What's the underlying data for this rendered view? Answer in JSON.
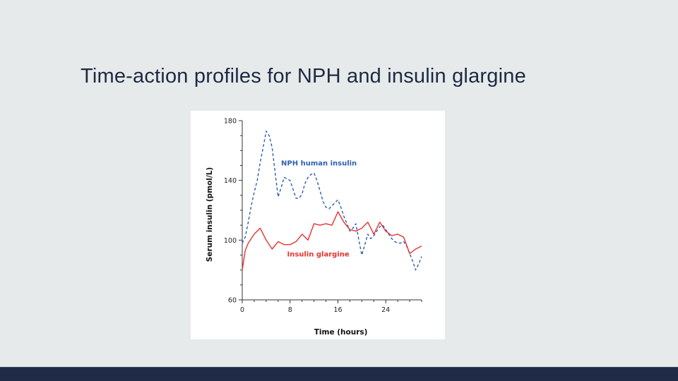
{
  "slide": {
    "title": "Time-action profiles for NPH and insulin glargine"
  },
  "colors": {
    "background": "#e6eaea",
    "title": "#1e2a44",
    "bottom_bar": "#1f2b47",
    "nph_series": "#2f5fb3",
    "glargine_series": "#e8322e"
  },
  "chart_data": {
    "type": "line",
    "title": "",
    "xlabel": "Time (hours)",
    "ylabel": "Serum insulin (pmol/L)",
    "xlim": [
      0,
      30
    ],
    "ylim": [
      60,
      180
    ],
    "x_ticks": [
      0,
      8,
      16,
      24
    ],
    "y_ticks": [
      60,
      100,
      140,
      180
    ],
    "grid": false,
    "series": [
      {
        "name": "NPH human insulin",
        "style": "dashed",
        "color": "#2f5fb3",
        "x": [
          0,
          0.5,
          1,
          1.5,
          2,
          2.5,
          3,
          3.5,
          4,
          4.5,
          5,
          5.5,
          6,
          6.5,
          7,
          7.5,
          8,
          8.5,
          9,
          9.5,
          10,
          10.5,
          11,
          11.5,
          12,
          12.5,
          13,
          13.5,
          14,
          14.5,
          15,
          15.5,
          16,
          16.5,
          17,
          17.5,
          18,
          18.5,
          19,
          19.5,
          20,
          20.5,
          21,
          21.5,
          22,
          22.5,
          23,
          23.5,
          24,
          24.5,
          25,
          25.5,
          26,
          26.5,
          27,
          27.5,
          28,
          28.5,
          29,
          29.5,
          30
        ],
        "y": [
          98,
          102,
          112,
          123,
          132,
          140,
          152,
          162,
          173,
          170,
          162,
          145,
          129,
          135,
          142,
          141,
          140,
          134,
          128,
          128,
          131,
          138,
          142,
          144,
          145,
          140,
          133,
          126,
          122,
          121,
          123,
          125,
          127,
          122,
          116,
          111,
          106,
          108,
          111,
          100,
          90,
          97,
          104,
          101,
          103,
          106,
          109,
          110,
          107,
          104,
          101,
          99,
          98,
          98,
          99,
          96,
          91,
          86,
          80,
          84,
          89
        ]
      },
      {
        "name": "Insulin glargine",
        "style": "solid",
        "color": "#e8322e",
        "x": [
          0,
          0.5,
          1,
          2,
          3,
          4,
          5,
          6,
          7,
          8,
          9,
          10,
          11,
          12,
          13,
          14,
          15,
          16,
          17,
          18,
          19,
          20,
          21,
          22,
          23,
          24,
          25,
          26,
          27,
          28,
          29,
          30
        ],
        "y": [
          80,
          93,
          98,
          104,
          108,
          100,
          94,
          99,
          97,
          97,
          99,
          104,
          100,
          111,
          110,
          111,
          110,
          119,
          112,
          107,
          106,
          108,
          112,
          104,
          112,
          106,
          103,
          104,
          102,
          91,
          94,
          96
        ]
      }
    ],
    "annotations": [
      {
        "text": "NPH human insulin",
        "series": 0,
        "x": 6.5,
        "y": 150
      },
      {
        "text": "Insulin glargine",
        "series": 1,
        "x": 7.5,
        "y": 89
      }
    ]
  }
}
